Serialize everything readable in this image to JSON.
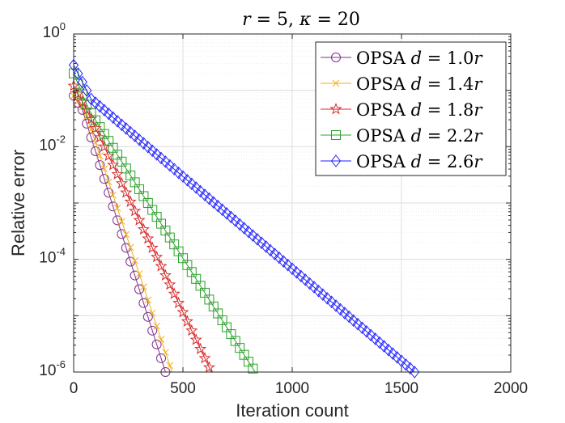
{
  "chart_data": {
    "type": "line",
    "title_parts": [
      "r",
      " = 5, ",
      "κ",
      " = 20"
    ],
    "xlabel": "Iteration count",
    "ylabel": "Relative error",
    "xlim": [
      0,
      2000
    ],
    "ylim": [
      1e-06,
      1
    ],
    "yscale": "log",
    "grid": true,
    "legend_position": "top-right",
    "xticks": [
      0,
      500,
      1000,
      1500,
      2000
    ],
    "xtick_labels": [
      "0",
      "500",
      "1000",
      "1500",
      "2000"
    ],
    "yticks": [
      1e-06,
      0.0001,
      0.01,
      1
    ],
    "ytick_labels": [
      {
        "base": "10",
        "exp": "-6"
      },
      {
        "base": "10",
        "exp": "-4"
      },
      {
        "base": "10",
        "exp": "-2"
      },
      {
        "base": "10",
        "exp": "0"
      }
    ],
    "series": [
      {
        "name_prefix": "OPSA ",
        "name_var": "d",
        "name_eq": " = 1.0",
        "name_suffix": "r",
        "color": "#7e2f8e",
        "marker": "circle",
        "start": [
          0,
          0.08
        ],
        "knee": [
          40,
          0.045
        ],
        "end": [
          420,
          1e-06
        ],
        "marker_step": 20
      },
      {
        "name_prefix": "OPSA ",
        "name_var": "d",
        "name_eq": " = 1.4",
        "name_suffix": "r",
        "color": "#edb120",
        "marker": "cross",
        "start": [
          0,
          0.08
        ],
        "knee": [
          50,
          0.045
        ],
        "end": [
          450,
          1e-06
        ],
        "marker_step": 20
      },
      {
        "name_prefix": "OPSA ",
        "name_var": "d",
        "name_eq": " = 1.8",
        "name_suffix": "r",
        "color": "#d62728",
        "marker": "star",
        "start": [
          0,
          0.12
        ],
        "knee": [
          60,
          0.045
        ],
        "end": [
          630,
          1e-06
        ],
        "marker_step": 20
      },
      {
        "name_prefix": "OPSA ",
        "name_var": "d",
        "name_eq": " = 2.2",
        "name_suffix": "r",
        "color": "#2ca02c",
        "marker": "square",
        "start": [
          0,
          0.2
        ],
        "knee": [
          70,
          0.045
        ],
        "end": [
          830,
          1e-06
        ],
        "marker_step": 20
      },
      {
        "name_prefix": "OPSA ",
        "name_var": "d",
        "name_eq": " = 2.6",
        "name_suffix": "r",
        "color": "#1f1fff",
        "marker": "diamond",
        "start": [
          0,
          0.28
        ],
        "knee": [
          80,
          0.07
        ],
        "end": [
          1560,
          1e-06
        ],
        "marker_step": 20
      }
    ]
  }
}
